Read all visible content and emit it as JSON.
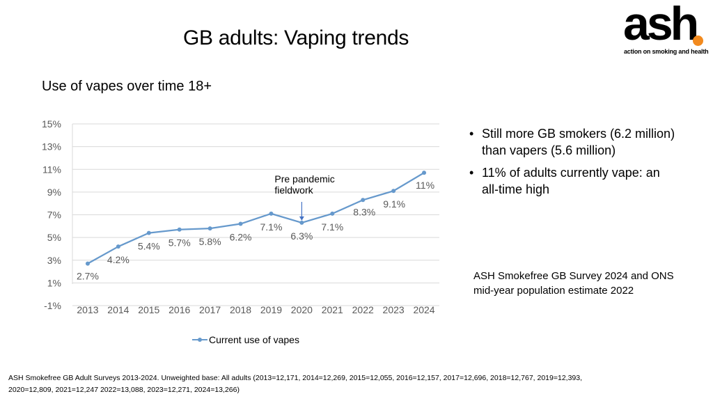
{
  "slide": {
    "title": "GB adults: Vaping trends",
    "subtitle": "Use of vapes over time 18+",
    "logo": {
      "word": "ash",
      "tagline": "action on smoking and health"
    },
    "bullets": [
      "Still more GB smokers (6.2 million) than vapers (5.6 million)",
      "11% of adults currently vape: an all-time high"
    ],
    "source_note": "ASH Smokefree GB Survey 2024 and ONS mid-year population estimate 2022",
    "footnote": "ASH Smokefree GB Adult Surveys 2013-2024. Unweighted base: All adults (2013=12,171, 2014=12,269, 2015=12,055, 2016=12,157, 2017=12,696, 2018=12,767, 2019=12,393, 2020=12,809, 2021=12,247 2022=13,088, 2023=12,271, 2024=13,266)"
  },
  "chart_data": {
    "type": "line",
    "categories": [
      "2013",
      "2014",
      "2015",
      "2016",
      "2017",
      "2018",
      "2019",
      "2020",
      "2021",
      "2022",
      "2023",
      "2024"
    ],
    "series": [
      {
        "name": "Current use of vapes",
        "values": [
          2.7,
          4.2,
          5.4,
          5.7,
          5.8,
          6.2,
          7.1,
          6.3,
          7.1,
          8.3,
          9.1,
          10.7
        ],
        "data_labels": [
          "2.7%",
          "4.2%",
          "5.4%",
          "5.7%",
          "5.8%",
          "6.2%",
          "7.1%",
          "6.3%",
          "7.1%",
          "8.3%",
          "9.1%",
          "11%"
        ],
        "color": "#6699cc"
      }
    ],
    "yticks": [
      "-1%",
      "1%",
      "3%",
      "5%",
      "7%",
      "9%",
      "11%",
      "13%",
      "15%"
    ],
    "ylim": [
      -1,
      15
    ],
    "grid": true,
    "legend": "bottom",
    "annotation": {
      "text_lines": [
        "Pre pandemic",
        "fieldwork"
      ],
      "category": "2020"
    }
  }
}
